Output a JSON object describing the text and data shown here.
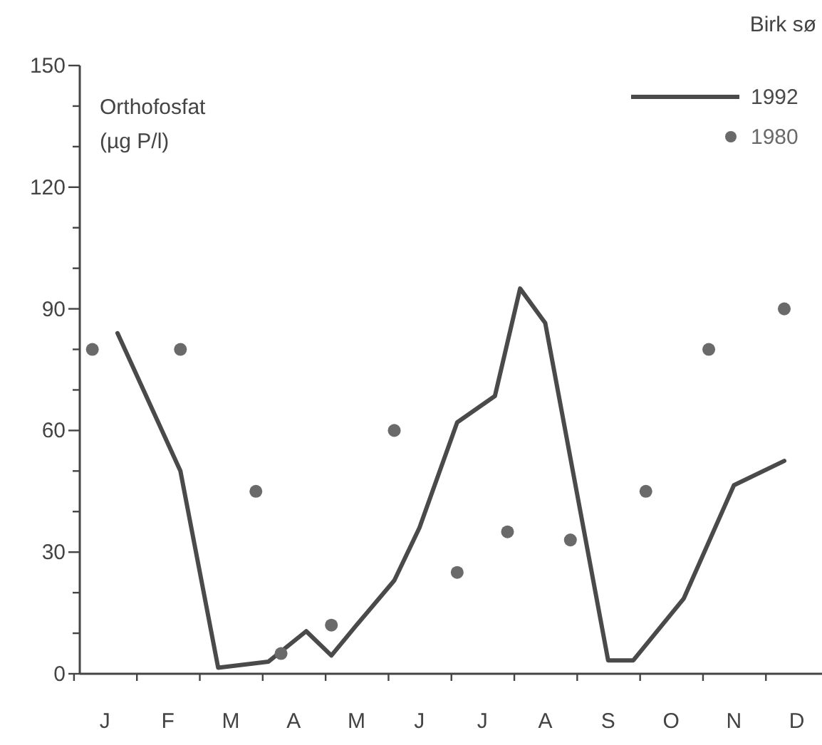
{
  "chart_data": {
    "type": "line",
    "title": "Birk sø",
    "ylabel": "Orthofosfat (µg P/l)",
    "legend": "top right",
    "grid": false,
    "categories": [
      null,
      null,
      "J",
      null,
      null,
      null,
      null,
      "F",
      null,
      null,
      null,
      null,
      "M",
      null,
      null,
      null,
      null,
      "A",
      null,
      null,
      null,
      null,
      "M",
      null,
      null,
      null,
      null,
      "J",
      null,
      null,
      null,
      null,
      "J",
      null,
      null,
      null,
      null,
      "A",
      null,
      null,
      null,
      null,
      "S",
      null,
      null,
      null,
      null,
      "O",
      null,
      null,
      null,
      null,
      "N",
      null,
      null,
      null,
      null,
      "D",
      null,
      null
    ],
    "ylim": [
      0,
      150
    ],
    "yticks": [
      0,
      {
        "value": 10,
        "label": null
      },
      {
        "value": 20,
        "label": null
      },
      30,
      {
        "value": 40,
        "label": null
      },
      {
        "value": 50,
        "label": null
      },
      60,
      {
        "value": 70,
        "label": null
      },
      {
        "value": 80,
        "label": null
      },
      90,
      {
        "value": 100,
        "label": null
      },
      {
        "value": 110,
        "label": null
      },
      120,
      {
        "value": 130,
        "label": null
      },
      {
        "value": 140,
        "label": null
      },
      150
    ],
    "series": [
      {
        "name": "1992",
        "marker": "none",
        "line_style": "solid",
        "color": "#4a4a4a",
        "values": [
          null,
          null,
          null,
          84,
          null,
          null,
          null,
          null,
          50,
          null,
          null,
          1.5,
          null,
          null,
          null,
          3,
          null,
          null,
          10.5,
          null,
          4.5,
          null,
          12,
          null,
          null,
          23,
          null,
          36,
          null,
          null,
          62,
          null,
          null,
          68.5,
          null,
          95,
          null,
          86.5,
          null,
          null,
          null,
          null,
          3.3,
          null,
          3.3,
          null,
          null,
          null,
          18.5,
          null,
          null,
          null,
          46.5,
          null,
          null,
          null,
          52.5,
          null,
          null,
          null
        ]
      },
      {
        "name": "1980",
        "type": "scatter",
        "marker": "circle",
        "color": "#6a6a6a",
        "values": [
          null,
          80,
          null,
          null,
          null,
          null,
          null,
          null,
          80,
          null,
          null,
          null,
          null,
          null,
          45,
          null,
          5,
          null,
          null,
          null,
          12,
          null,
          null,
          null,
          null,
          60,
          null,
          null,
          null,
          null,
          25,
          null,
          null,
          null,
          35,
          null,
          null,
          null,
          null,
          33,
          null,
          null,
          null,
          null,
          null,
          45,
          null,
          null,
          null,
          null,
          80,
          null,
          null,
          null,
          null,
          null,
          90,
          null,
          null,
          null
        ]
      }
    ]
  }
}
